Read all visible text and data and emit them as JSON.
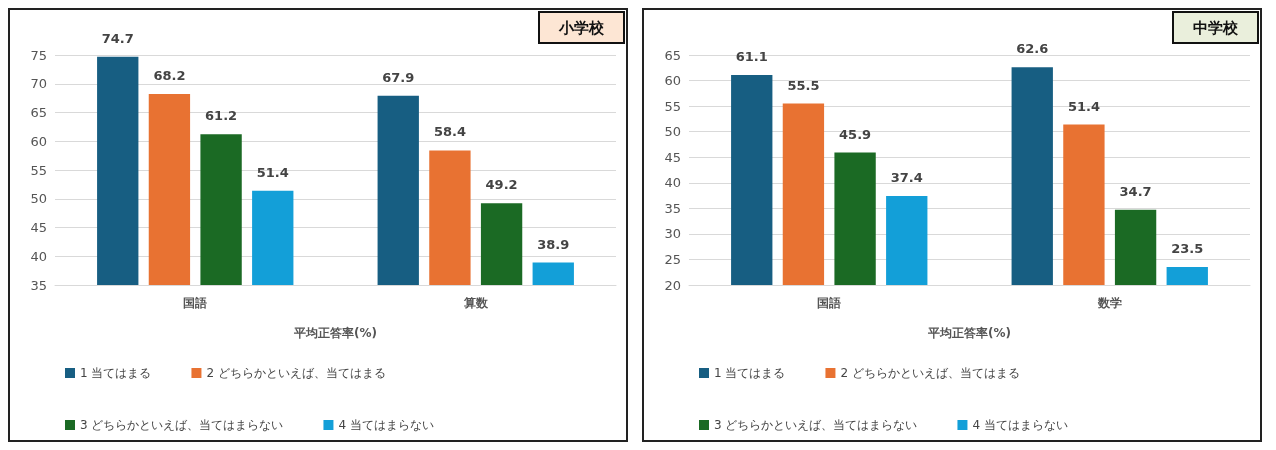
{
  "chart_data": [
    {
      "type": "bar",
      "title": "小学校",
      "xlabel": "平均正答率(%)",
      "categories": [
        "国語",
        "算数"
      ],
      "series": [
        {
          "name": "1 当てはまる",
          "color": "#175e82",
          "values": [
            74.7,
            67.9
          ]
        },
        {
          "name": "2 どちらかといえば、当てはまる",
          "color": "#e87232",
          "values": [
            68.2,
            58.4
          ]
        },
        {
          "name": "3 どちらかといえば、当てはまらない",
          "color": "#1b6a24",
          "values": [
            61.2,
            49.2
          ]
        },
        {
          "name": "4 当てはまらない",
          "color": "#139fd8",
          "values": [
            51.4,
            38.9
          ]
        }
      ],
      "ylim": [
        35,
        75
      ],
      "yticks": [
        35,
        40,
        45,
        50,
        55,
        60,
        65,
        70,
        75
      ],
      "grid": "y",
      "legend": "bottom",
      "data_labels": true
    },
    {
      "type": "bar",
      "title": "中学校",
      "xlabel": "平均正答率(%)",
      "categories": [
        "国語",
        "数学"
      ],
      "series": [
        {
          "name": "1 当てはまる",
          "color": "#175e82",
          "values": [
            61.1,
            62.6
          ]
        },
        {
          "name": "2 どちらかといえば、当てはまる",
          "color": "#e87232",
          "values": [
            55.5,
            51.4
          ]
        },
        {
          "name": "3 どちらかといえば、当てはまらない",
          "color": "#1b6a24",
          "values": [
            45.9,
            34.7
          ]
        },
        {
          "name": "4 当てはまらない",
          "color": "#139fd8",
          "values": [
            37.4,
            23.5
          ]
        }
      ],
      "ylim": [
        20,
        65
      ],
      "yticks": [
        20,
        25,
        30,
        35,
        40,
        45,
        50,
        55,
        60,
        65
      ],
      "grid": "y",
      "legend": "bottom",
      "data_labels": true
    }
  ]
}
